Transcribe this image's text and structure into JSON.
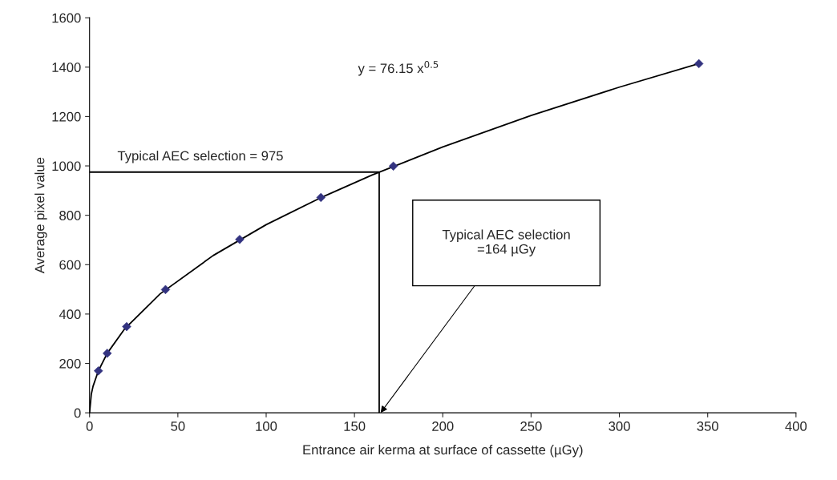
{
  "chart_data": {
    "type": "scatter",
    "xlabel": "Entrance air kerma at surface of cassette (µGy)",
    "ylabel": "Average pixel value",
    "xlim": [
      0,
      400
    ],
    "xticks": [
      0,
      50,
      100,
      150,
      200,
      250,
      300,
      350,
      400
    ],
    "ylim": [
      0,
      1600
    ],
    "yticks": [
      0,
      200,
      400,
      600,
      800,
      1000,
      1200,
      1400,
      1600
    ],
    "grid": false,
    "legend": false,
    "series": [
      {
        "type": "line",
        "color": "#000000",
        "marker": "none",
        "x": [
          0,
          1,
          2,
          5,
          10,
          20,
          40,
          70,
          100,
          130,
          160,
          200,
          250,
          300,
          345
        ],
        "values": [
          0,
          76,
          108,
          170,
          241,
          341,
          482,
          637,
          762,
          868,
          963,
          1077,
          1204,
          1319,
          1414
        ]
      },
      {
        "type": "line",
        "color": "#000000",
        "marker": "none",
        "x": [
          0,
          164,
          164
        ],
        "values": [
          975,
          975,
          0
        ]
      },
      {
        "color": "#333380",
        "marker": "diamond",
        "x": [
          5,
          10,
          21,
          43,
          85,
          131,
          172,
          345
        ],
        "values": [
          170,
          241,
          349,
          499,
          702,
          872,
          999,
          1414
        ]
      }
    ],
    "annotations": [
      {
        "text": "Typical AEC selection = 975",
        "x": 0,
        "y": 975
      },
      "Typical AEC selection\n=164 µGy",
      "y = 76.15 x$^{0.5}$"
    ]
  }
}
